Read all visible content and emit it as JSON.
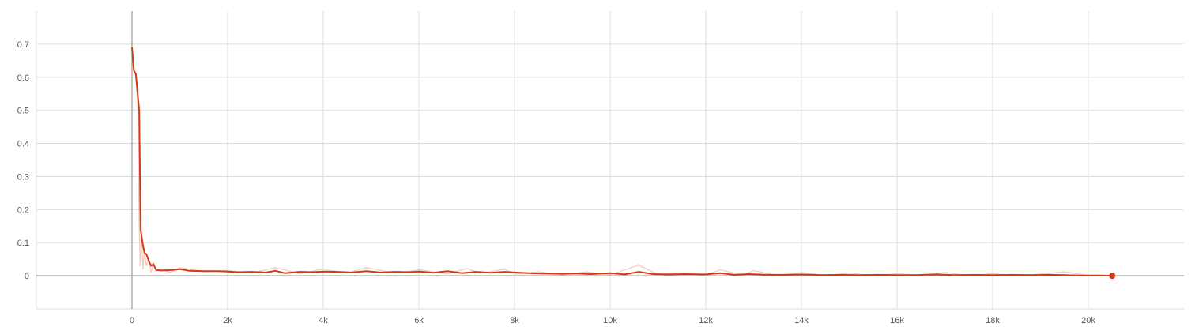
{
  "chart_data": {
    "type": "line",
    "title": "",
    "xlabel": "",
    "ylabel": "",
    "xlim": [
      -2000,
      22000
    ],
    "ylim": [
      -0.1,
      0.8
    ],
    "x_ticks": [
      0,
      2000,
      4000,
      6000,
      8000,
      10000,
      12000,
      14000,
      16000,
      18000,
      20000
    ],
    "x_tick_labels": [
      "0",
      "2k",
      "4k",
      "6k",
      "8k",
      "10k",
      "12k",
      "14k",
      "16k",
      "18k",
      "20k"
    ],
    "y_ticks": [
      0,
      0.1,
      0.2,
      0.3,
      0.4,
      0.5,
      0.6,
      0.7
    ],
    "y_tick_labels": [
      "0",
      "0.1",
      "0.2",
      "0.3",
      "0.4",
      "0.5",
      "0.6",
      "0.7"
    ],
    "grid": true,
    "colors": {
      "line": "#d23a14",
      "raw": "#f2c7c1",
      "grid": "#dddddd",
      "axis": "#999999"
    },
    "series": [
      {
        "values_kind": "raw",
        "x": [
          0,
          40,
          90,
          120,
          150,
          170,
          200,
          230,
          260,
          300,
          350,
          400,
          450,
          500,
          600,
          800,
          1000,
          1500,
          2000,
          2500,
          3000,
          3500,
          4000,
          4500,
          4900,
          5500,
          6000,
          6600,
          7000,
          7300,
          7800,
          8000,
          8500,
          9000,
          9500,
          10000,
          10600,
          11000,
          11500,
          12000,
          12300,
          12800,
          13000,
          13500,
          14000,
          14500,
          15000,
          15500,
          16000,
          16600,
          17000,
          17500,
          18000,
          18500,
          19000,
          19500,
          20000,
          20500
        ],
        "y": [
          0.69,
          0.62,
          0.61,
          0.5,
          0.15,
          0.03,
          0.12,
          0.02,
          0.07,
          0.03,
          0.05,
          0.01,
          0.04,
          0.015,
          0.02,
          0.01,
          0.025,
          0.012,
          0.016,
          0.008,
          0.025,
          0.006,
          0.02,
          0.008,
          0.025,
          0.008,
          0.018,
          0.006,
          0.022,
          0.008,
          0.02,
          0.005,
          0.012,
          0.003,
          0.012,
          0.003,
          0.032,
          0.004,
          0.008,
          0.002,
          0.018,
          0.002,
          0.016,
          0.001,
          0.01,
          0.001,
          0.008,
          0.001,
          0.006,
          0.001,
          0.01,
          0.001,
          0.006,
          0.001,
          0.005,
          0.012,
          0.001,
          0.0
        ]
      },
      {
        "values_kind": "smoothed",
        "x": [
          0,
          40,
          80,
          150,
          180,
          200,
          220,
          260,
          300,
          350,
          400,
          450,
          500,
          600,
          800,
          1000,
          1200,
          1500,
          1800,
          2000,
          2200,
          2500,
          2800,
          3000,
          3200,
          3500,
          3800,
          4000,
          4300,
          4600,
          4900,
          5200,
          5500,
          5800,
          6000,
          6300,
          6600,
          6900,
          7200,
          7500,
          7800,
          8000,
          8300,
          8600,
          9000,
          9300,
          9600,
          10000,
          10300,
          10600,
          10900,
          11200,
          11600,
          12000,
          12300,
          12600,
          12900,
          13300,
          13700,
          14000,
          14400,
          14800,
          15200,
          15600,
          16000,
          16400,
          16800,
          17200,
          17600,
          18000,
          18400,
          18800,
          19200,
          19500,
          19800,
          20200,
          20500
        ],
        "y": [
          0.69,
          0.62,
          0.61,
          0.5,
          0.14,
          0.12,
          0.1,
          0.07,
          0.065,
          0.045,
          0.03,
          0.035,
          0.018,
          0.016,
          0.017,
          0.02,
          0.015,
          0.014,
          0.014,
          0.013,
          0.011,
          0.012,
          0.01,
          0.015,
          0.008,
          0.012,
          0.011,
          0.013,
          0.012,
          0.01,
          0.014,
          0.01,
          0.012,
          0.011,
          0.013,
          0.009,
          0.014,
          0.008,
          0.012,
          0.009,
          0.012,
          0.01,
          0.008,
          0.007,
          0.006,
          0.007,
          0.005,
          0.008,
          0.004,
          0.012,
          0.005,
          0.004,
          0.005,
          0.004,
          0.008,
          0.003,
          0.005,
          0.003,
          0.003,
          0.004,
          0.002,
          0.003,
          0.002,
          0.003,
          0.002,
          0.002,
          0.004,
          0.002,
          0.003,
          0.002,
          0.003,
          0.002,
          0.003,
          0.002,
          0.001,
          0.001,
          0.0
        ]
      }
    ]
  }
}
